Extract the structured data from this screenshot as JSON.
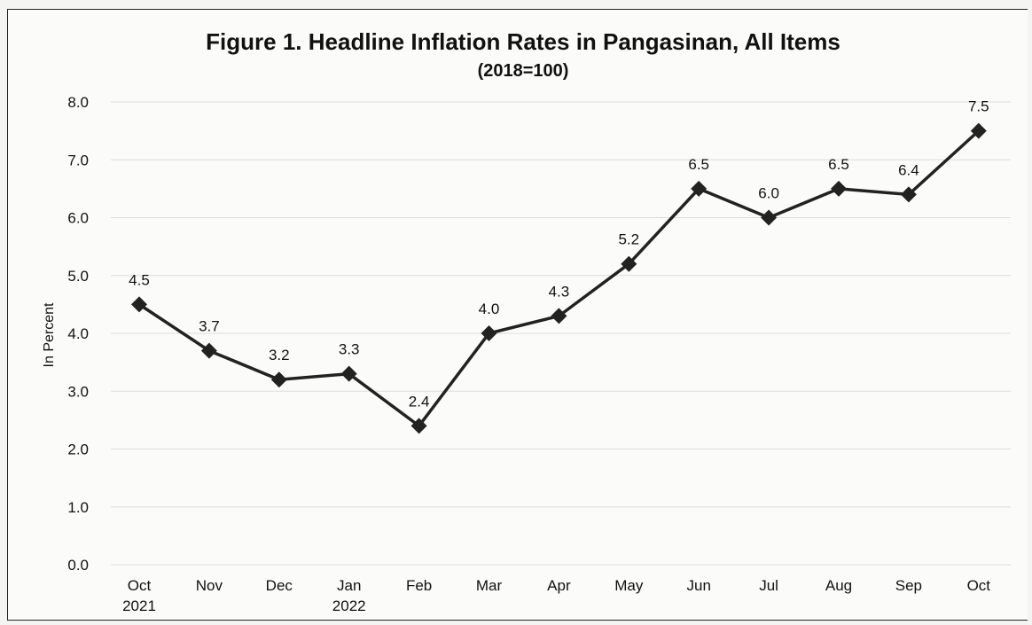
{
  "chart_data": {
    "type": "line",
    "title": "Figure 1. Headline Inflation Rates in Pangasinan, All Items",
    "subtitle": "(2018=100)",
    "ylabel": "In Percent",
    "xlabel": "",
    "ylim": [
      0,
      8
    ],
    "yticks": [
      "0.0",
      "1.0",
      "2.0",
      "3.0",
      "4.0",
      "5.0",
      "6.0",
      "7.0",
      "8.0"
    ],
    "categories": [
      [
        "Oct",
        "2021"
      ],
      [
        "Nov"
      ],
      [
        "Dec"
      ],
      [
        "Jan",
        "2022"
      ],
      [
        "Feb"
      ],
      [
        "Mar"
      ],
      [
        "Apr"
      ],
      [
        "May"
      ],
      [
        "Jun"
      ],
      [
        "Jul"
      ],
      [
        "Aug"
      ],
      [
        "Sep"
      ],
      [
        "Oct"
      ]
    ],
    "values": [
      4.5,
      3.7,
      3.2,
      3.3,
      2.4,
      4.0,
      4.3,
      5.2,
      6.5,
      6.0,
      6.5,
      6.4,
      7.5
    ],
    "labels": [
      "4.5",
      "3.7",
      "3.2",
      "3.3",
      "2.4",
      "4.0",
      "4.3",
      "5.2",
      "6.5",
      "6.0",
      "6.5",
      "6.4",
      "7.5"
    ],
    "grid": true,
    "line_color": "#222222",
    "marker": "diamond"
  }
}
